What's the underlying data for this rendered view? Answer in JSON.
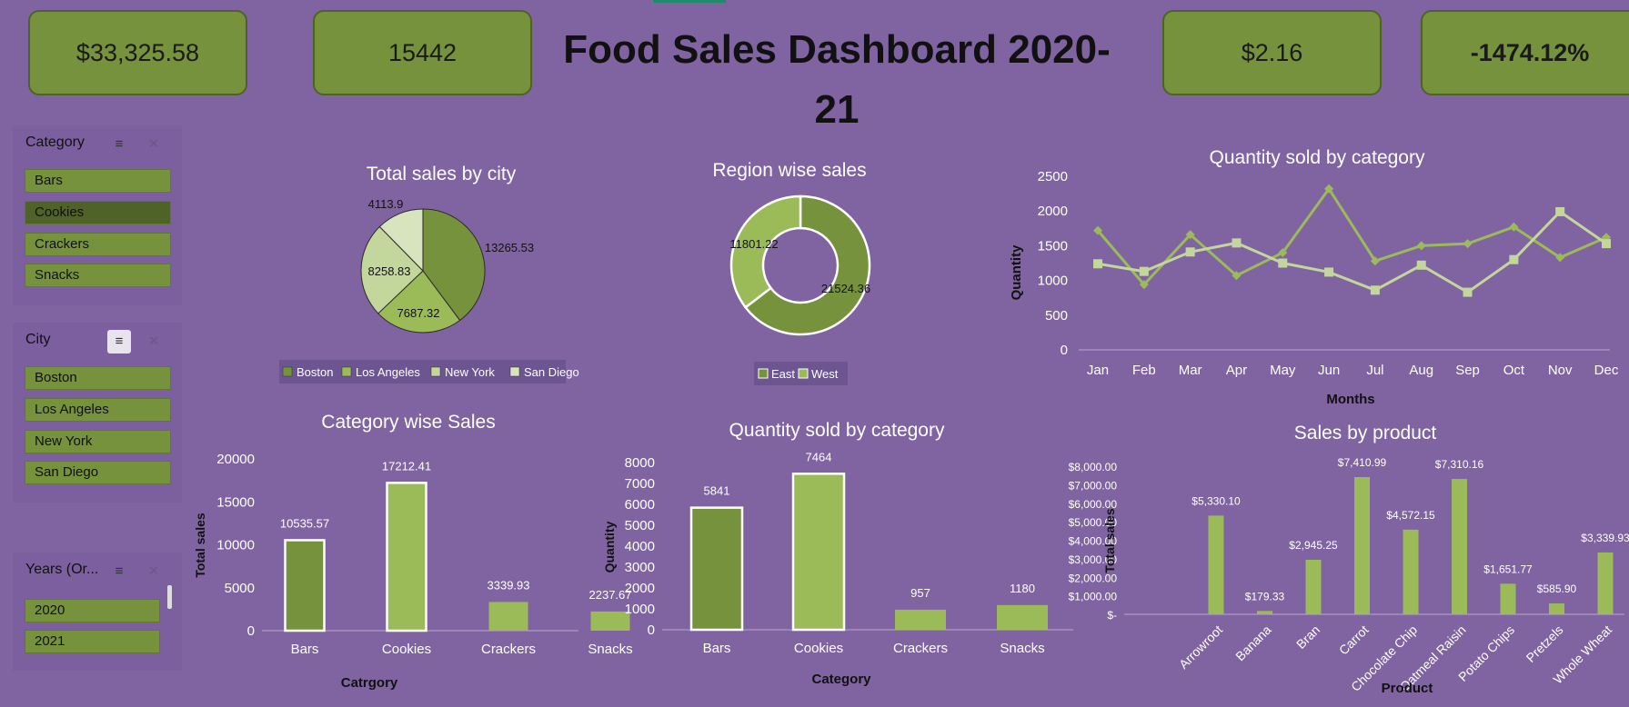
{
  "header": {
    "title": "Food Sales Dashboard 2020-21"
  },
  "kpis": {
    "total_sales": "$33,325.58",
    "total_quantity": "15442",
    "avg_price": "$2.16",
    "growth": "-1474.12%"
  },
  "slicers": {
    "category": {
      "title": "Category",
      "items": [
        "Bars",
        "Cookies",
        "Crackers",
        "Snacks"
      ],
      "selected": "Cookies"
    },
    "city": {
      "title": "City",
      "items": [
        "Boston",
        "Los Angeles",
        "New York",
        "San Diego"
      ]
    },
    "years": {
      "title": "Years (Or...",
      "items": [
        "2020",
        "2021"
      ]
    }
  },
  "icons": {
    "multi_select": "multi-select-icon",
    "clear_filter": "clear-filter-icon"
  },
  "colors": {
    "background": "#8064A2",
    "green_dark": "#76923C",
    "green_light": "#9BBB59",
    "green_pale": "#C3D69B",
    "green_paler": "#D7E4BD"
  },
  "chart_data": [
    {
      "id": "sales_by_city",
      "type": "pie",
      "title": "Total sales by city",
      "categories": [
        "Boston",
        "Los Angeles",
        "New York",
        "San Diego"
      ],
      "values": [
        13265.53,
        7687.32,
        8258.83,
        4113.9
      ],
      "data_labels": [
        "13265.53",
        "7687.32",
        "8258.83",
        "4113.9"
      ],
      "legend": "bottom"
    },
    {
      "id": "region_sales",
      "type": "pie",
      "title": "Region wise sales",
      "categories": [
        "East",
        "West"
      ],
      "values": [
        21524.36,
        11801.22
      ],
      "data_labels": [
        "21524.36",
        "11801.22"
      ],
      "legend": "bottom"
    },
    {
      "id": "quantity_by_month",
      "type": "line",
      "title": "Quantity sold by category",
      "xlabel": "Months",
      "ylabel": "Quantity",
      "categories": [
        "Jan",
        "Feb",
        "Mar",
        "Apr",
        "May",
        "Jun",
        "Jul",
        "Aug",
        "Sep",
        "Oct",
        "Nov",
        "Dec"
      ],
      "series": [
        {
          "values": [
            1720,
            940,
            1660,
            1070,
            1400,
            2320,
            1280,
            1500,
            1530,
            1770,
            1330,
            1620
          ]
        },
        {
          "values": [
            1240,
            1130,
            1410,
            1540,
            1250,
            1120,
            860,
            1220,
            830,
            1300,
            1990,
            1530
          ]
        }
      ],
      "ylim": [
        0,
        2500
      ],
      "yticks": [
        "0",
        "500",
        "1000",
        "1500",
        "2000",
        "2500"
      ]
    },
    {
      "id": "category_sales",
      "type": "bar",
      "title": "Category wise Sales",
      "xlabel": "Catrgory",
      "ylabel": "Total sales",
      "categories": [
        "Bars",
        "Cookies",
        "Crackers",
        "Snacks"
      ],
      "values": [
        10535.57,
        17212.41,
        3339.93,
        2237.67
      ],
      "data_labels": [
        "10535.57",
        "17212.41",
        "3339.93",
        "2237.67"
      ],
      "ylim": [
        0,
        20000
      ],
      "yticks": [
        "0",
        "5000",
        "10000",
        "15000",
        "20000"
      ]
    },
    {
      "id": "quantity_by_category",
      "type": "bar",
      "title": "Quantity sold by category",
      "xlabel": "Category",
      "ylabel": "Quantity",
      "categories": [
        "Bars",
        "Cookies",
        "Crackers",
        "Snacks"
      ],
      "values": [
        5841,
        7464,
        957,
        1180
      ],
      "data_labels": [
        "5841",
        "7464",
        "957",
        "1180"
      ],
      "ylim": [
        0,
        8000
      ],
      "yticks": [
        "0",
        "1000",
        "2000",
        "3000",
        "4000",
        "5000",
        "6000",
        "7000",
        "8000"
      ]
    },
    {
      "id": "sales_by_product",
      "type": "bar",
      "title": "Sales by product",
      "xlabel": "Product",
      "ylabel": "Total sales",
      "categories": [
        "Arrowroot",
        "Banana",
        "Bran",
        "Carrot",
        "Chocolate Chip",
        "Oatmeal Raisin",
        "Potato Chips",
        "Pretzels",
        "Whole Wheat"
      ],
      "values": [
        5330.1,
        179.33,
        2945.25,
        7410.99,
        4572.15,
        7310.16,
        1651.77,
        585.9,
        3339.93
      ],
      "data_labels": [
        "$5,330.10",
        "$179.33",
        "$2,945.25",
        "$7,410.99",
        "$4,572.15",
        "$7,310.16",
        "$1,651.77",
        "$585.90",
        "$3,339.93"
      ],
      "ylim": [
        0,
        8000
      ],
      "yticks": [
        "$-",
        "$1,000.00",
        "$2,000.00",
        "$3,000.00",
        "$4,000.00",
        "$5,000.00",
        "$6,000.00",
        "$7,000.00",
        "$8,000.00"
      ]
    }
  ]
}
